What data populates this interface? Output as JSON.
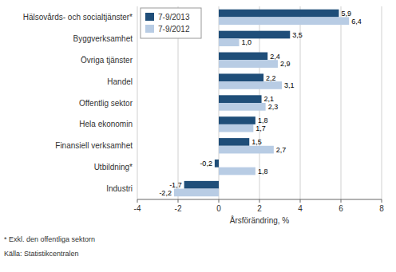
{
  "chart_data": {
    "type": "bar",
    "orientation": "horizontal",
    "categories": [
      "Industri",
      "Utbildning*",
      "Finansiell verksamhet",
      "Hela ekonomin",
      "Offentlig sektor",
      "Handel",
      "Övriga tjänster",
      "Byggverksamhet",
      "Hälsovårds- och socialtjänster*"
    ],
    "series": [
      {
        "name": "7-9/2013",
        "color": "#1f4e79",
        "values": [
          -1.7,
          -0.2,
          1.5,
          1.8,
          2.1,
          2.2,
          2.4,
          3.5,
          5.9
        ],
        "value_labels": [
          "-1,7",
          "-0,2",
          "1,5",
          "1,8",
          "2,1",
          "2,2",
          "2,4",
          "3,5",
          "5,9"
        ]
      },
      {
        "name": "7-9/2012",
        "color": "#b8cce4",
        "values": [
          -2.2,
          1.8,
          2.7,
          1.7,
          2.3,
          3.1,
          2.9,
          1.0,
          6.4
        ],
        "value_labels": [
          "-2,2",
          "1,8",
          "2,7",
          "1,7",
          "2,3",
          "3,1",
          "2,9",
          "1,0",
          "6,4"
        ]
      }
    ],
    "xlabel": "Årsförändring, %",
    "xlim": [
      -4,
      8
    ],
    "xticks": [
      -4,
      -2,
      0,
      2,
      4,
      6,
      8
    ],
    "grid": true,
    "legend": "upper left",
    "data_labels": true,
    "annotations": [
      "* Exkl. den offentliga sektorn",
      "Källa: Statistikcentralen"
    ]
  }
}
